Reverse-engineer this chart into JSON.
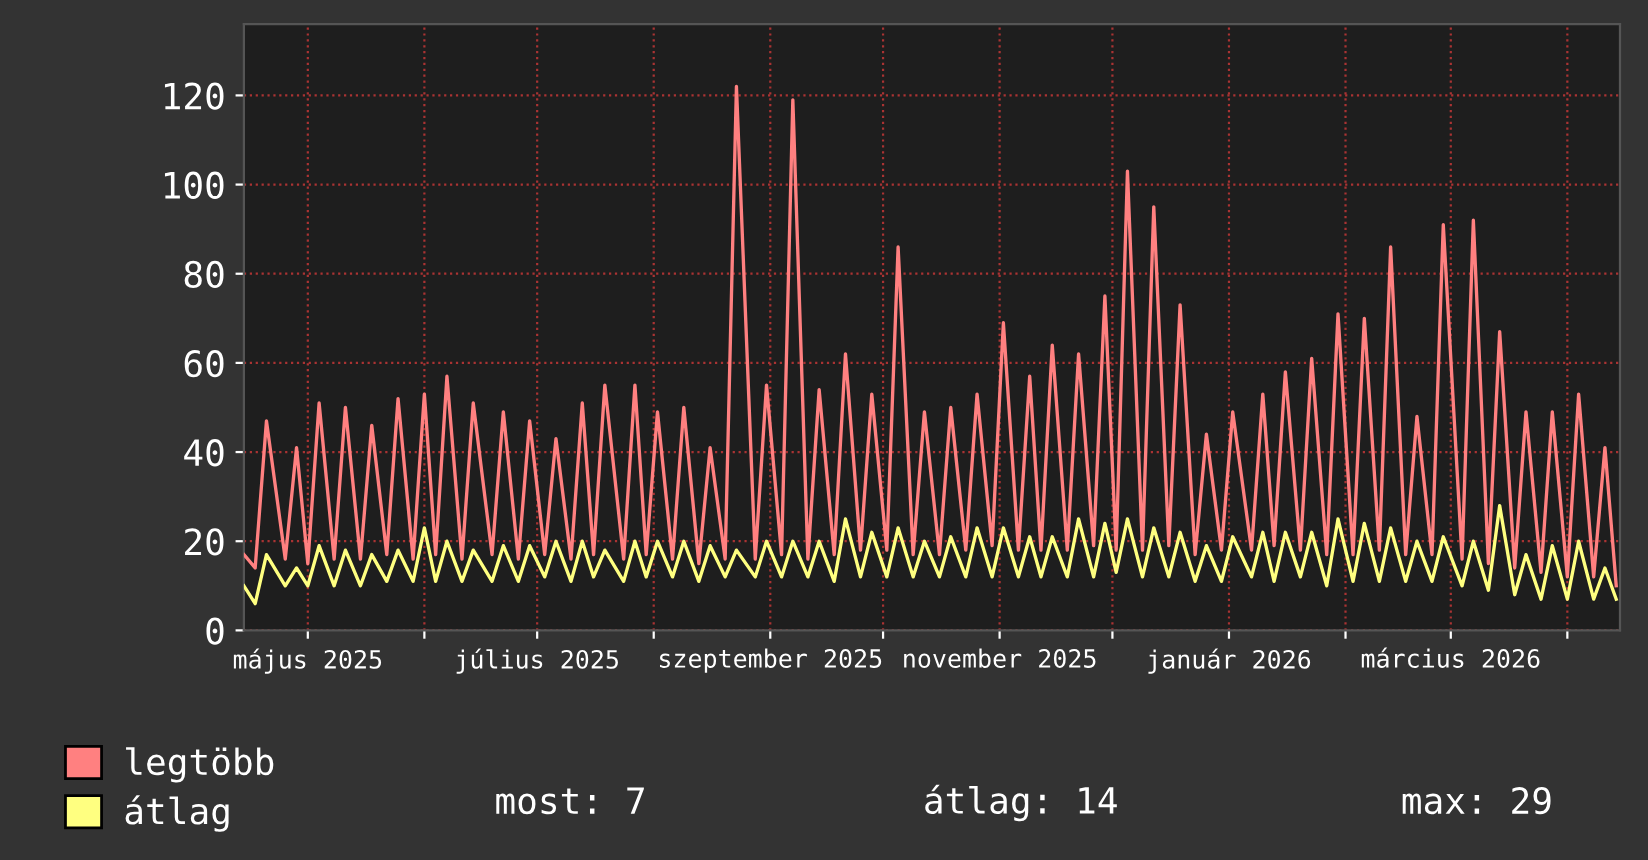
{
  "chart_data": {
    "type": "line",
    "xlim": [
      "2025-04-14",
      "2026-04-15"
    ],
    "ylim": [
      0,
      136
    ],
    "yticks": [
      0,
      20,
      40,
      60,
      80,
      100,
      120
    ],
    "xticks": [
      {
        "value": "2025-05-01",
        "label": "május 2025"
      },
      {
        "value": "2025-06-01",
        "label": null
      },
      {
        "value": "2025-07-01",
        "label": "július 2025"
      },
      {
        "value": "2025-08-01",
        "label": null
      },
      {
        "value": "2025-09-01",
        "label": "szeptember 2025"
      },
      {
        "value": "2025-10-01",
        "label": null
      },
      {
        "value": "2025-11-01",
        "label": "november 2025"
      },
      {
        "value": "2025-12-01",
        "label": null
      },
      {
        "value": "2026-01-01",
        "label": "január 2026"
      },
      {
        "value": "2026-02-01",
        "label": null
      },
      {
        "value": "2026-03-01",
        "label": "március 2026"
      },
      {
        "value": "2026-04-01",
        "label": null
      }
    ],
    "grid": true,
    "legend": "bottom left",
    "marker": "none",
    "line_style": "solid",
    "annotations": [
      "most: 7",
      "átlag: 14",
      "max: 29"
    ],
    "x": [
      "2025-04-14",
      "2025-04-17",
      "2025-04-20",
      "2025-04-25",
      "2025-04-28",
      "2025-05-01",
      "2025-05-04",
      "2025-05-08",
      "2025-05-11",
      "2025-05-15",
      "2025-05-18",
      "2025-05-22",
      "2025-05-25",
      "2025-05-29",
      "2025-06-01",
      "2025-06-04",
      "2025-06-07",
      "2025-06-11",
      "2025-06-14",
      "2025-06-19",
      "2025-06-22",
      "2025-06-26",
      "2025-06-29",
      "2025-07-03",
      "2025-07-06",
      "2025-07-10",
      "2025-07-13",
      "2025-07-16",
      "2025-07-19",
      "2025-07-24",
      "2025-07-27",
      "2025-07-30",
      "2025-08-02",
      "2025-08-06",
      "2025-08-09",
      "2025-08-13",
      "2025-08-16",
      "2025-08-20",
      "2025-08-23",
      "2025-08-28",
      "2025-08-31",
      "2025-09-04",
      "2025-09-07",
      "2025-09-11",
      "2025-09-14",
      "2025-09-18",
      "2025-09-21",
      "2025-09-25",
      "2025-09-28",
      "2025-10-02",
      "2025-10-05",
      "2025-10-09",
      "2025-10-12",
      "2025-10-16",
      "2025-10-19",
      "2025-10-23",
      "2025-10-26",
      "2025-10-30",
      "2025-11-02",
      "2025-11-06",
      "2025-11-09",
      "2025-11-12",
      "2025-11-15",
      "2025-11-19",
      "2025-11-22",
      "2025-11-26",
      "2025-11-29",
      "2025-12-02",
      "2025-12-05",
      "2025-12-09",
      "2025-12-12",
      "2025-12-16",
      "2025-12-19",
      "2025-12-23",
      "2025-12-26",
      "2025-12-30",
      "2026-01-02",
      "2026-01-07",
      "2026-01-10",
      "2026-01-13",
      "2026-01-16",
      "2026-01-20",
      "2026-01-23",
      "2026-01-27",
      "2026-01-30",
      "2026-02-03",
      "2026-02-06",
      "2026-02-10",
      "2026-02-13",
      "2026-02-17",
      "2026-02-20",
      "2026-02-24",
      "2026-02-27",
      "2026-03-04",
      "2026-03-07",
      "2026-03-11",
      "2026-03-14",
      "2026-03-18",
      "2026-03-21",
      "2026-03-25",
      "2026-03-28",
      "2026-04-01",
      "2026-04-04",
      "2026-04-08",
      "2026-04-11",
      "2026-04-14"
    ],
    "series": [
      {
        "name": "legtöbb",
        "color": "#ff8080",
        "values": [
          17,
          14,
          47,
          16,
          41,
          15,
          51,
          16,
          50,
          16,
          46,
          17,
          52,
          16,
          53,
          17,
          57,
          16,
          51,
          17,
          49,
          16,
          47,
          17,
          43,
          16,
          51,
          17,
          55,
          16,
          55,
          17,
          49,
          16,
          50,
          15,
          41,
          16,
          122,
          16,
          55,
          17,
          119,
          16,
          54,
          17,
          62,
          18,
          53,
          18,
          86,
          17,
          49,
          17,
          50,
          18,
          53,
          19,
          69,
          18,
          57,
          18,
          64,
          18,
          62,
          19,
          75,
          18,
          103,
          18,
          95,
          19,
          73,
          17,
          44,
          18,
          49,
          18,
          53,
          19,
          58,
          18,
          61,
          17,
          71,
          17,
          70,
          18,
          86,
          17,
          48,
          17,
          91,
          16,
          92,
          15,
          67,
          14,
          49,
          13,
          49,
          12,
          53,
          12,
          41,
          10
        ]
      },
      {
        "name": "átlag",
        "color": "#ffff80",
        "values": [
          10,
          6,
          17,
          10,
          14,
          10,
          19,
          10,
          18,
          10,
          17,
          11,
          18,
          11,
          23,
          11,
          20,
          11,
          18,
          11,
          19,
          11,
          19,
          12,
          20,
          11,
          20,
          12,
          18,
          11,
          20,
          12,
          20,
          12,
          20,
          11,
          19,
          12,
          18,
          12,
          20,
          12,
          20,
          12,
          20,
          11,
          25,
          12,
          22,
          12,
          23,
          12,
          20,
          12,
          21,
          12,
          23,
          12,
          23,
          12,
          21,
          12,
          21,
          12,
          25,
          12,
          24,
          13,
          25,
          12,
          23,
          12,
          22,
          11,
          19,
          11,
          21,
          12,
          22,
          11,
          22,
          12,
          22,
          10,
          25,
          11,
          24,
          11,
          23,
          11,
          20,
          11,
          21,
          10,
          20,
          9,
          28,
          8,
          17,
          7,
          19,
          7,
          20,
          7,
          14,
          7
        ]
      }
    ]
  }
}
